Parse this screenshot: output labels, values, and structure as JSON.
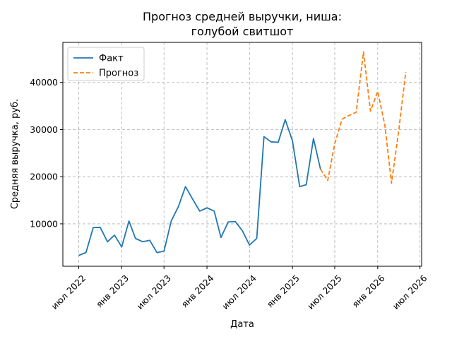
{
  "chart_data": {
    "type": "line",
    "title": "Прогноз средней выручки, ниша:\nголубой свитшот",
    "xlabel": "Дата",
    "ylabel": "Средняя выручка, руб.",
    "x_ticks": [
      {
        "date": "2022-07-01",
        "label": "июл 2022"
      },
      {
        "date": "2023-01-01",
        "label": "янв 2023"
      },
      {
        "date": "2023-07-01",
        "label": "июл 2023"
      },
      {
        "date": "2024-01-01",
        "label": "янв 2024"
      },
      {
        "date": "2024-07-01",
        "label": "июл 2024"
      },
      {
        "date": "2025-01-01",
        "label": "янв 2025"
      },
      {
        "date": "2025-07-01",
        "label": "июл 2025"
      },
      {
        "date": "2026-01-01",
        "label": "янв 2026"
      },
      {
        "date": "2026-07-01",
        "label": "июл 2026"
      }
    ],
    "y_ticks": [
      10000,
      20000,
      30000,
      40000
    ],
    "xlim": [
      "2022-04-24",
      "2026-07-08"
    ],
    "ylim": [
      1000,
      48500
    ],
    "grid": true,
    "legend_position": "top-left",
    "series": [
      {
        "name": "Факт",
        "color": "#1f77b4",
        "style": "solid",
        "points": [
          {
            "x": "2022-07-01",
            "y": 3300
          },
          {
            "x": "2022-08-01",
            "y": 3900
          },
          {
            "x": "2022-09-01",
            "y": 9200
          },
          {
            "x": "2022-10-01",
            "y": 9250
          },
          {
            "x": "2022-11-01",
            "y": 6200
          },
          {
            "x": "2022-12-01",
            "y": 7600
          },
          {
            "x": "2023-01-01",
            "y": 5100
          },
          {
            "x": "2023-02-01",
            "y": 10600
          },
          {
            "x": "2023-03-01",
            "y": 6900
          },
          {
            "x": "2023-04-01",
            "y": 6200
          },
          {
            "x": "2023-05-01",
            "y": 6500
          },
          {
            "x": "2023-06-01",
            "y": 3900
          },
          {
            "x": "2023-07-01",
            "y": 4200
          },
          {
            "x": "2023-08-01",
            "y": 10600
          },
          {
            "x": "2023-09-01",
            "y": 13700
          },
          {
            "x": "2023-10-01",
            "y": 17900
          },
          {
            "x": "2023-11-01",
            "y": 15200
          },
          {
            "x": "2023-12-01",
            "y": 12700
          },
          {
            "x": "2024-01-01",
            "y": 13400
          },
          {
            "x": "2024-02-01",
            "y": 12700
          },
          {
            "x": "2024-03-01",
            "y": 7100
          },
          {
            "x": "2024-04-01",
            "y": 10400
          },
          {
            "x": "2024-05-01",
            "y": 10500
          },
          {
            "x": "2024-06-01",
            "y": 8500
          },
          {
            "x": "2024-07-01",
            "y": 5500
          },
          {
            "x": "2024-08-01",
            "y": 6900
          },
          {
            "x": "2024-09-01",
            "y": 28500
          },
          {
            "x": "2024-10-01",
            "y": 27400
          },
          {
            "x": "2024-11-01",
            "y": 27300
          },
          {
            "x": "2024-12-01",
            "y": 32100
          },
          {
            "x": "2025-01-01",
            "y": 27600
          },
          {
            "x": "2025-02-01",
            "y": 17900
          },
          {
            "x": "2025-03-01",
            "y": 18300
          },
          {
            "x": "2025-04-01",
            "y": 28100
          },
          {
            "x": "2025-05-01",
            "y": 21600
          }
        ]
      },
      {
        "name": "Прогноз",
        "color": "#ff7f0e",
        "style": "dashed",
        "points": [
          {
            "x": "2025-05-01",
            "y": 21600
          },
          {
            "x": "2025-06-01",
            "y": 19200
          },
          {
            "x": "2025-07-01",
            "y": 27000
          },
          {
            "x": "2025-08-01",
            "y": 32200
          },
          {
            "x": "2025-09-01",
            "y": 33000
          },
          {
            "x": "2025-10-01",
            "y": 33700
          },
          {
            "x": "2025-11-01",
            "y": 46500
          },
          {
            "x": "2025-12-01",
            "y": 33900
          },
          {
            "x": "2026-01-01",
            "y": 38100
          },
          {
            "x": "2026-02-01",
            "y": 30800
          },
          {
            "x": "2026-03-01",
            "y": 18600
          },
          {
            "x": "2026-04-01",
            "y": 29800
          },
          {
            "x": "2026-05-01",
            "y": 42200
          }
        ]
      }
    ]
  }
}
